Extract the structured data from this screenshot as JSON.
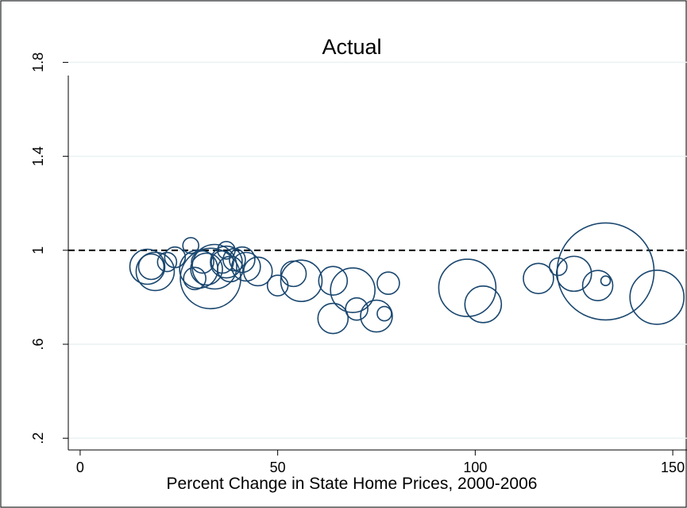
{
  "chart_data": {
    "type": "scatter",
    "title": "Actual",
    "xlabel": "Percent Change in State Home Prices, 2000-2006",
    "ylabel": "",
    "xlim": [
      -3,
      153
    ],
    "ylim": [
      0.15,
      1.93
    ],
    "x_ticks": [
      0,
      50,
      100,
      150
    ],
    "x_tick_labels": [
      "0",
      "50",
      "100",
      "150"
    ],
    "y_ticks": [
      0.2,
      0.6,
      1,
      1.4,
      1.8
    ],
    "y_tick_labels": [
      ".2",
      ".6",
      "1",
      "1.4",
      "1.8"
    ],
    "reference_line": {
      "y": 1,
      "style": "dashed"
    },
    "grid": true,
    "legend": "none",
    "marker": "hollow-circle",
    "marker_color": "#1a476f",
    "size_note": "circle size varies by point",
    "points": [
      {
        "x": 17,
        "y": 0.93,
        "size": 22
      },
      {
        "x": 18,
        "y": 0.93,
        "size": 16
      },
      {
        "x": 19,
        "y": 0.91,
        "size": 24
      },
      {
        "x": 22,
        "y": 0.95,
        "size": 12
      },
      {
        "x": 24,
        "y": 0.97,
        "size": 13
      },
      {
        "x": 28,
        "y": 1.02,
        "size": 10
      },
      {
        "x": 29,
        "y": 0.88,
        "size": 14
      },
      {
        "x": 30,
        "y": 0.92,
        "size": 24
      },
      {
        "x": 31,
        "y": 0.95,
        "size": 14
      },
      {
        "x": 32,
        "y": 0.92,
        "size": 20
      },
      {
        "x": 33,
        "y": 0.88,
        "size": 38
      },
      {
        "x": 34,
        "y": 0.93,
        "size": 28
      },
      {
        "x": 36,
        "y": 0.95,
        "size": 14
      },
      {
        "x": 37,
        "y": 1.0,
        "size": 11
      },
      {
        "x": 37,
        "y": 0.95,
        "size": 20
      },
      {
        "x": 38,
        "y": 0.92,
        "size": 16
      },
      {
        "x": 39,
        "y": 0.96,
        "size": 14
      },
      {
        "x": 41,
        "y": 0.96,
        "size": 16
      },
      {
        "x": 42,
        "y": 0.93,
        "size": 18
      },
      {
        "x": 45,
        "y": 0.91,
        "size": 18
      },
      {
        "x": 50,
        "y": 0.85,
        "size": 13
      },
      {
        "x": 54,
        "y": 0.9,
        "size": 16
      },
      {
        "x": 56,
        "y": 0.87,
        "size": 26
      },
      {
        "x": 64,
        "y": 0.87,
        "size": 18
      },
      {
        "x": 64,
        "y": 0.71,
        "size": 19
      },
      {
        "x": 69,
        "y": 0.83,
        "size": 28
      },
      {
        "x": 70,
        "y": 0.75,
        "size": 14
      },
      {
        "x": 75,
        "y": 0.72,
        "size": 20
      },
      {
        "x": 77,
        "y": 0.73,
        "size": 9
      },
      {
        "x": 78,
        "y": 0.86,
        "size": 14
      },
      {
        "x": 98,
        "y": 0.84,
        "size": 36
      },
      {
        "x": 102,
        "y": 0.77,
        "size": 23
      },
      {
        "x": 116,
        "y": 0.88,
        "size": 19
      },
      {
        "x": 121,
        "y": 0.93,
        "size": 11
      },
      {
        "x": 125,
        "y": 0.9,
        "size": 22
      },
      {
        "x": 131,
        "y": 0.85,
        "size": 19
      },
      {
        "x": 133,
        "y": 0.91,
        "size": 61
      },
      {
        "x": 133,
        "y": 0.87,
        "size": 6
      },
      {
        "x": 146,
        "y": 0.8,
        "size": 34
      }
    ]
  }
}
